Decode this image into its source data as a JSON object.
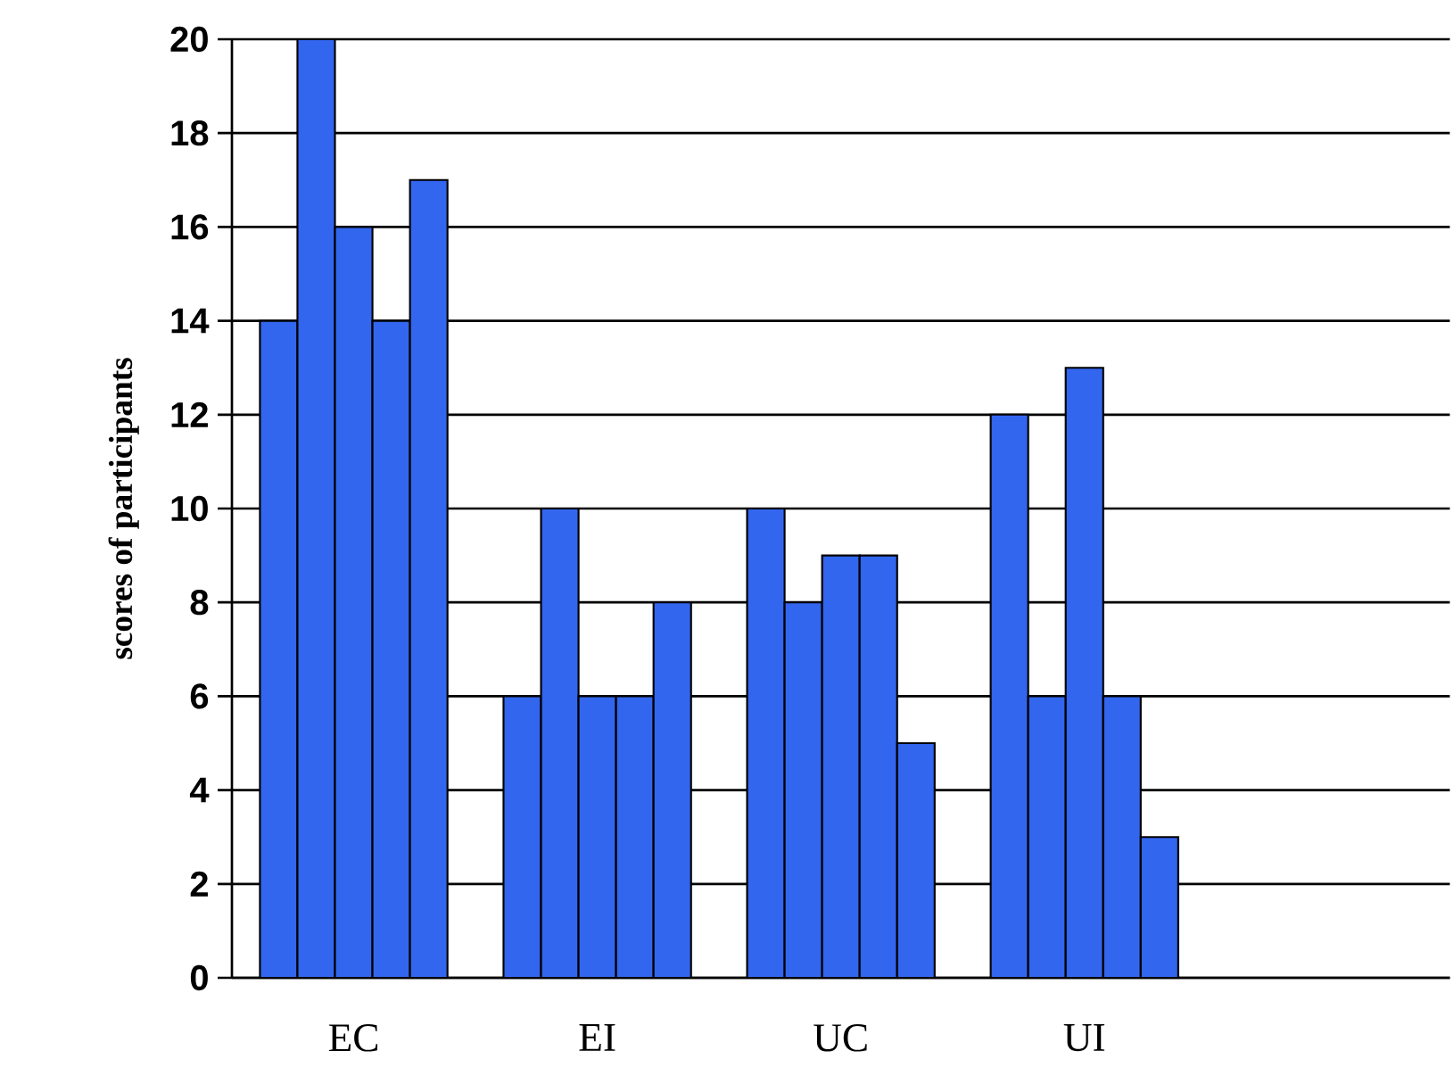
{
  "chart_data": {
    "type": "bar",
    "ylabel": "scores of participants",
    "categories": [
      "EC",
      "EI",
      "UC",
      "UI",
      null
    ],
    "series": [
      {
        "color": "#3366ee",
        "values": [
          14,
          6,
          10,
          12,
          null
        ]
      },
      {
        "color": "#3366ee",
        "values": [
          20,
          10,
          8,
          6,
          null
        ]
      },
      {
        "color": "#3366ee",
        "values": [
          16,
          6,
          9,
          13,
          null
        ]
      },
      {
        "color": "#3366ee",
        "values": [
          14,
          6,
          9,
          6,
          null
        ]
      },
      {
        "color": "#3366ee",
        "values": [
          17,
          8,
          5,
          3,
          null
        ]
      }
    ],
    "ylim": [
      0,
      20
    ],
    "yticks": [
      0,
      2,
      4,
      6,
      8,
      10,
      12,
      14,
      16,
      18,
      20
    ],
    "grid": "y"
  }
}
